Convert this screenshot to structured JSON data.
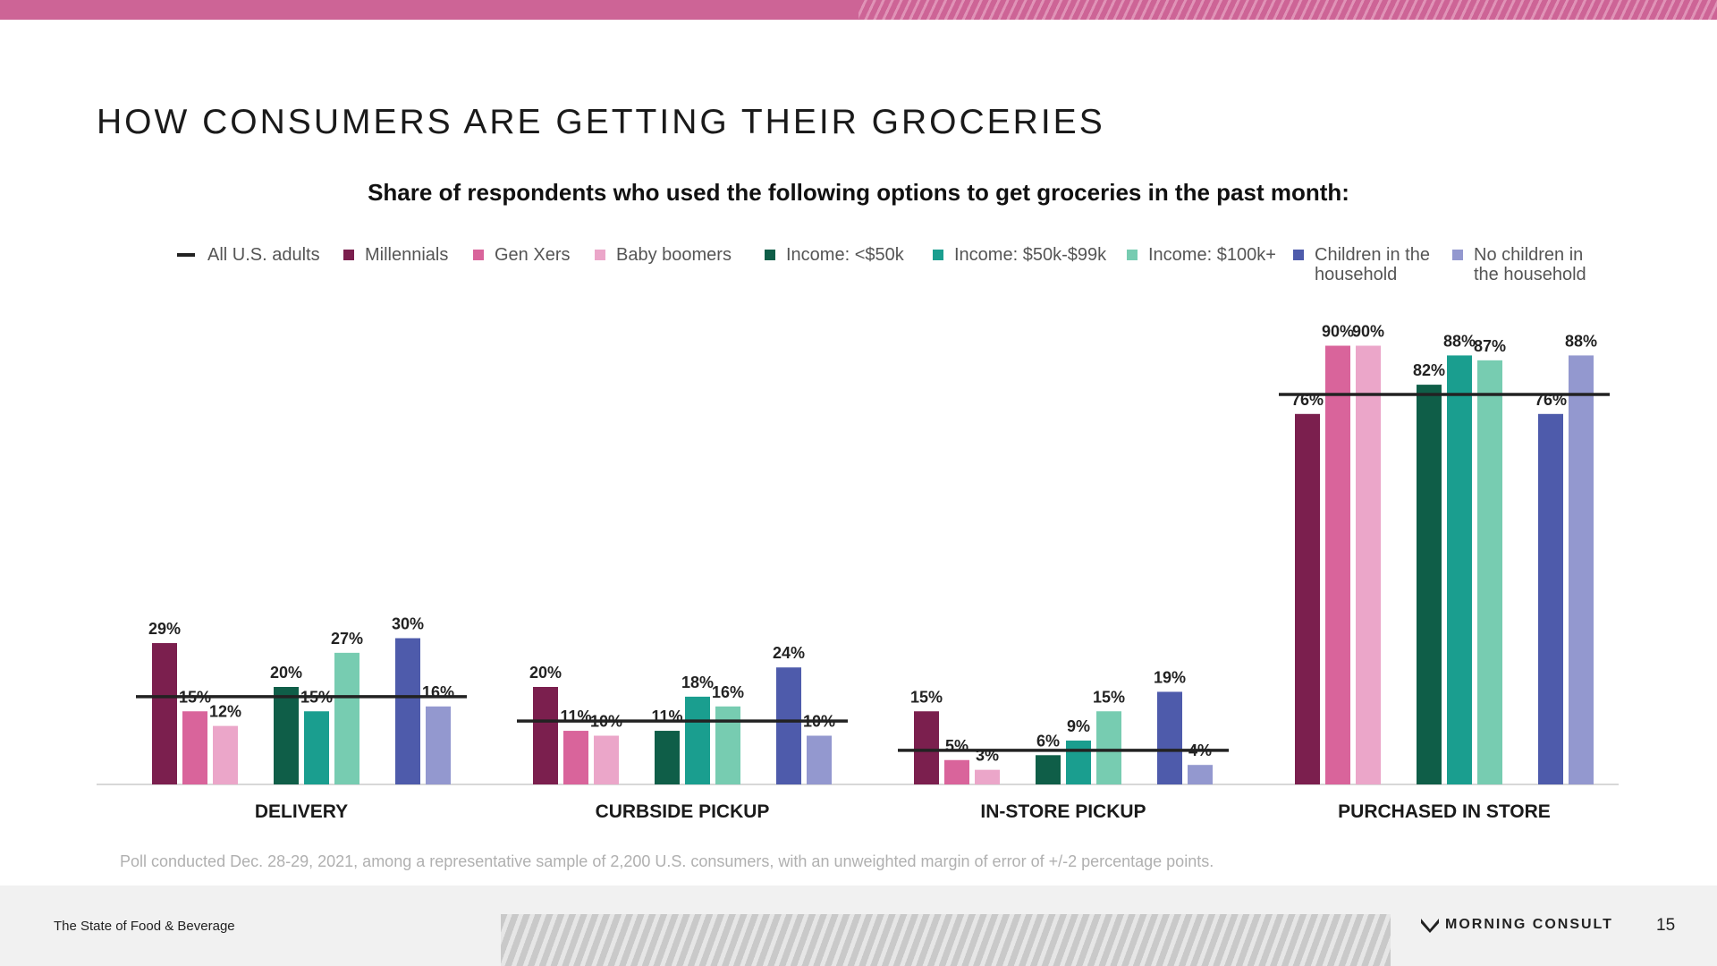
{
  "title": "HOW CONSUMERS ARE GETTING THEIR GROCERIES",
  "footnote": "Poll conducted Dec. 28-29, 2021, among a representative sample of 2,200 U.S. consumers, with an unweighted margin of error of +/-2 percentage points.",
  "footer": {
    "report_name": "The State of Food & Beverage",
    "brand": "MORNING CONSULT",
    "page_number": "15"
  },
  "legend": [
    {
      "label": "All U.S. adults",
      "type": "line",
      "color": "#222222"
    },
    {
      "label": "Millennials",
      "type": "swatch",
      "color": "#7b1f4e"
    },
    {
      "label": "Gen Xers",
      "type": "swatch",
      "color": "#d9649b"
    },
    {
      "label": "Baby boomers",
      "type": "swatch",
      "color": "#eba6c9"
    },
    {
      "label": "Income: <$50k",
      "type": "swatch",
      "color": "#0f5e48"
    },
    {
      "label": "Income: $50k-$99k",
      "type": "swatch",
      "color": "#1a9e8f"
    },
    {
      "label": "Income: $100k+",
      "type": "swatch",
      "color": "#77ccb1"
    },
    {
      "label": "Children in the household",
      "type": "swatch",
      "color": "#4e5bab"
    },
    {
      "label": "No children in the household",
      "type": "swatch",
      "color": "#9398cf"
    }
  ],
  "chart_data": {
    "type": "bar",
    "title": "Share of respondents who used the following options to get groceries in the past month:",
    "xlabel": "",
    "ylabel": "",
    "ylim": [
      0,
      100
    ],
    "categories": [
      "DELIVERY",
      "CURBSIDE PICKUP",
      "IN-STORE PICKUP",
      "PURCHASED IN STORE"
    ],
    "series": [
      {
        "name": "Millennials",
        "values": [
          29,
          20,
          15,
          76
        ]
      },
      {
        "name": "Gen Xers",
        "values": [
          15,
          11,
          5,
          90
        ]
      },
      {
        "name": "Baby boomers",
        "values": [
          12,
          10,
          3,
          90
        ]
      },
      {
        "name": "Income: <$50k",
        "values": [
          20,
          11,
          6,
          82
        ]
      },
      {
        "name": "Income: $50k-$99k",
        "values": [
          15,
          18,
          9,
          88
        ]
      },
      {
        "name": "Income: $100k+",
        "values": [
          27,
          16,
          15,
          87
        ]
      },
      {
        "name": "Children in the household",
        "values": [
          30,
          24,
          19,
          76
        ]
      },
      {
        "name": "No children in the household",
        "values": [
          16,
          10,
          4,
          88
        ]
      }
    ],
    "reference_line": {
      "name": "All U.S. adults",
      "values": [
        18,
        13,
        7,
        80
      ]
    },
    "grid": false,
    "legend_position": "top"
  }
}
